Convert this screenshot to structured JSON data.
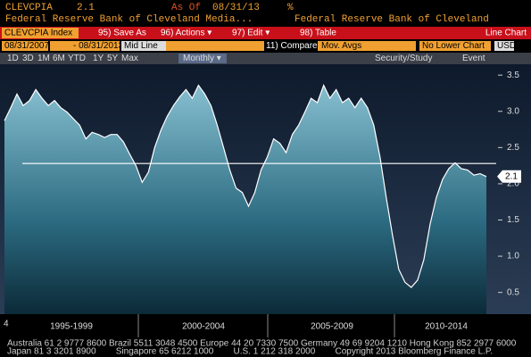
{
  "header": {
    "ticker": "CLEVCPIA",
    "value": "2.1",
    "as_of_label": "As Of",
    "as_of_date": "08/31/13",
    "unit": "%",
    "source_left": "Federal Reserve Bank of Cleveland Media...",
    "source_right": "Federal Reserve Bank of Cleveland"
  },
  "menu": {
    "security": "CLEVCPIA Index",
    "items": [
      "95) Save As",
      "96) Actions ▾",
      "97) Edit ▾",
      "98) Table"
    ],
    "chart_type": "Line Chart"
  },
  "controls": {
    "start": "08/31/2007",
    "end": "- 08/31/2013",
    "mid_line": "Mid Line",
    "compare": "11) Compare",
    "mov_avgs": "Mov. Avgs",
    "lower_chart": "No Lower Chart",
    "currency": "USD"
  },
  "periods": [
    "1D",
    "3D",
    "1M",
    "6M",
    "YTD",
    "1Y",
    "5Y",
    "Max",
    "Monthly ▾"
  ],
  "tools": [
    "Security/Study",
    "Event"
  ],
  "chart_data": {
    "type": "line",
    "color": "#ffffff",
    "values": [
      2.87,
      3.05,
      3.24,
      3.08,
      3.15,
      3.3,
      3.18,
      3.08,
      3.15,
      3.05,
      2.99,
      2.9,
      2.81,
      2.62,
      2.71,
      2.68,
      2.64,
      2.68,
      2.68,
      2.58,
      2.41,
      2.25,
      2.02,
      2.16,
      2.5,
      2.74,
      2.93,
      3.08,
      3.2,
      3.3,
      3.18,
      3.36,
      3.24,
      3.08,
      2.81,
      2.5,
      2.19,
      1.94,
      1.88,
      1.69,
      1.88,
      2.19,
      2.37,
      2.62,
      2.56,
      2.43,
      2.68,
      2.81,
      2.99,
      3.18,
      3.12,
      3.36,
      3.18,
      3.3,
      3.12,
      3.18,
      3.05,
      3.18,
      3.05,
      2.81,
      2.37,
      1.81,
      1.29,
      0.82,
      0.64,
      0.57,
      0.67,
      0.95,
      1.44,
      1.81,
      2.06,
      2.21,
      2.29,
      2.21,
      2.19,
      2.12,
      2.14,
      2.1
    ],
    "reference_line": 2.28,
    "ylim": [
      0.2,
      3.65
    ],
    "yticks": [
      0.5,
      {
        "value": 1,
        "label": "1.0"
      },
      1.5,
      {
        "value": 2,
        "label": "2.0"
      },
      2.5,
      {
        "value": 3,
        "label": "3.0"
      },
      3.5
    ],
    "x_labels": [
      "1995-1999",
      "2000-2004",
      "2005-2009",
      "2010-2014"
    ],
    "corner_label": "4"
  },
  "footer": [
    "Australia 61 2 9777 8600 Brazil 5511 3048 4500 Europe 44 20 7330 7500 Germany 49 69 9204 1210 Hong Kong 852 2977 6000",
    "Japan 81 3 3201 8900        Singapore 65 6212 1000        U.S. 1 212 318 2000        Copyright 2013 Bloomberg Finance L.P."
  ]
}
